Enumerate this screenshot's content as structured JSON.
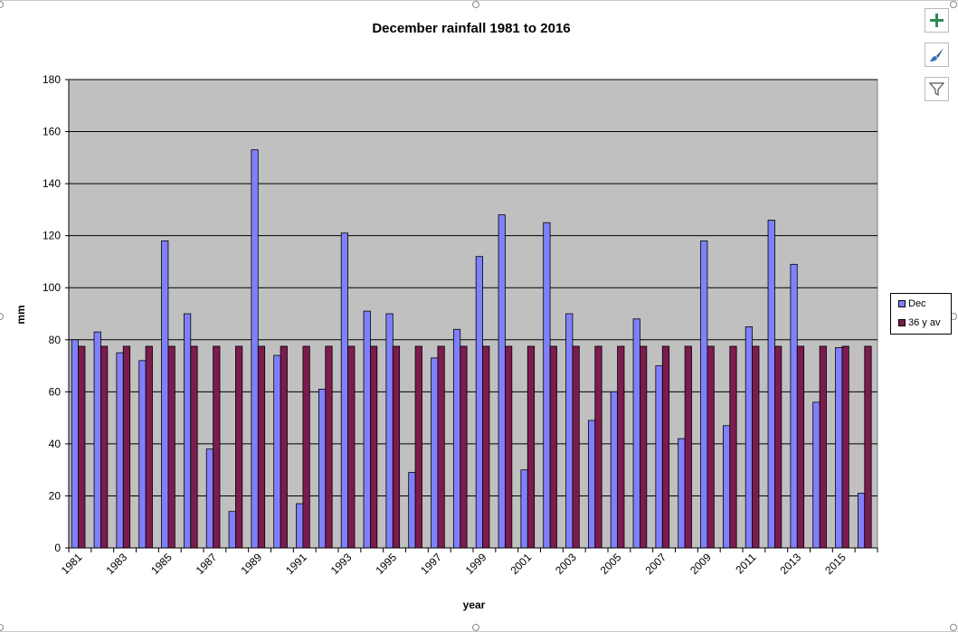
{
  "chart_data": {
    "type": "bar",
    "title": "December rainfall 1981 to 2016",
    "xlabel": "year",
    "ylabel": "mm",
    "ylim": [
      0,
      180
    ],
    "yticks": [
      0,
      20,
      40,
      60,
      80,
      100,
      120,
      140,
      160,
      180
    ],
    "categories": [
      "1981",
      "1982",
      "1983",
      "1984",
      "1985",
      "1986",
      "1987",
      "1988",
      "1989",
      "1990",
      "1991",
      "1992",
      "1993",
      "1994",
      "1995",
      "1996",
      "1997",
      "1998",
      "1999",
      "2000",
      "2001",
      "2002",
      "2003",
      "2004",
      "2005",
      "2006",
      "2007",
      "2008",
      "2009",
      "2010",
      "2011",
      "2012",
      "2013",
      "2014",
      "2015",
      "2016"
    ],
    "xtick_labels": [
      "1981",
      "",
      "1983",
      "",
      "1985",
      "",
      "1987",
      "",
      "1989",
      "",
      "1991",
      "",
      "1993",
      "",
      "1995",
      "",
      "1997",
      "",
      "1999",
      "",
      "2001",
      "",
      "2003",
      "",
      "2005",
      "",
      "2007",
      "",
      "2009",
      "",
      "2011",
      "",
      "2013",
      "",
      "2015",
      ""
    ],
    "series": [
      {
        "name": "Dec",
        "color": "#8080ff",
        "values": [
          80,
          83,
          75,
          72,
          118,
          90,
          38,
          14,
          153,
          74,
          17,
          61,
          121,
          91,
          90,
          29,
          73,
          84,
          112,
          128,
          30,
          125,
          90,
          49,
          60,
          88,
          70,
          42,
          118,
          47,
          85,
          126,
          109,
          56,
          77,
          21
        ]
      },
      {
        "name": "36 y av",
        "color": "#7c1b4e",
        "values": [
          77.5,
          77.5,
          77.5,
          77.5,
          77.5,
          77.5,
          77.5,
          77.5,
          77.5,
          77.5,
          77.5,
          77.5,
          77.5,
          77.5,
          77.5,
          77.5,
          77.5,
          77.5,
          77.5,
          77.5,
          77.5,
          77.5,
          77.5,
          77.5,
          77.5,
          77.5,
          77.5,
          77.5,
          77.5,
          77.5,
          77.5,
          77.5,
          77.5,
          77.5,
          77.5,
          77.5
        ]
      }
    ],
    "grid": true,
    "plot_background": "#c0c0c0",
    "legend": "right"
  },
  "toolbar": {
    "add_icon": "plus-icon",
    "style_icon": "paintbrush-icon",
    "filter_icon": "funnel-icon"
  }
}
